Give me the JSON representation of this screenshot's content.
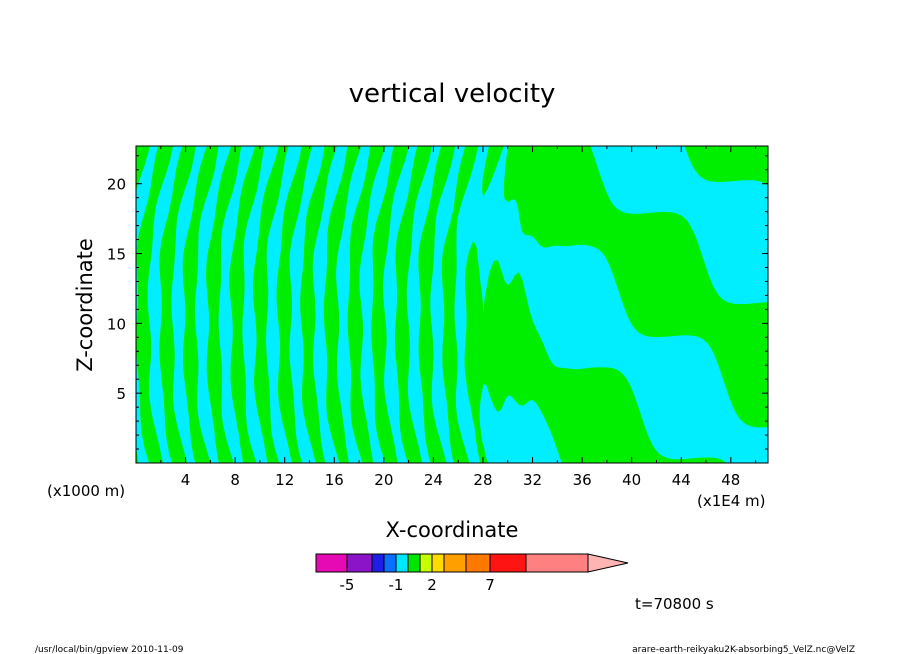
{
  "chart_data": {
    "type": "contour",
    "title": "vertical velocity",
    "xlabel": "X-coordinate",
    "ylabel": "Z-coordinate",
    "x_unit_left": "(x1000 m)",
    "x_unit_right": "(x1E4 m)",
    "xlim": [
      0,
      51
    ],
    "ylim": [
      0,
      22.7
    ],
    "x_ticks": [
      4,
      8,
      12,
      16,
      20,
      24,
      28,
      32,
      36,
      40,
      44,
      48
    ],
    "y_ticks": [
      5,
      10,
      15,
      20
    ],
    "colorbar": {
      "colors": [
        "#e60ab4",
        "#8c14c8",
        "#1e1ee6",
        "#0a6eff",
        "#00e6ff",
        "#00e600",
        "#c8ff00",
        "#ffdc00",
        "#ffa000",
        "#ff7800",
        "#ff1414",
        "#ff8080",
        "#ffb4b4"
      ],
      "tick_labels": [
        "-5",
        "-1",
        "2",
        "7"
      ]
    },
    "fill_colors": {
      "negative": "#00eeff",
      "positive": "#00ee00"
    },
    "time_label": "t=70800 s"
  },
  "footer": {
    "left": "/usr/local/bin/gpview  2010-11-09",
    "right": "arare-earth-reikyaku2K-absorbing5_VelZ.nc@VelZ"
  }
}
